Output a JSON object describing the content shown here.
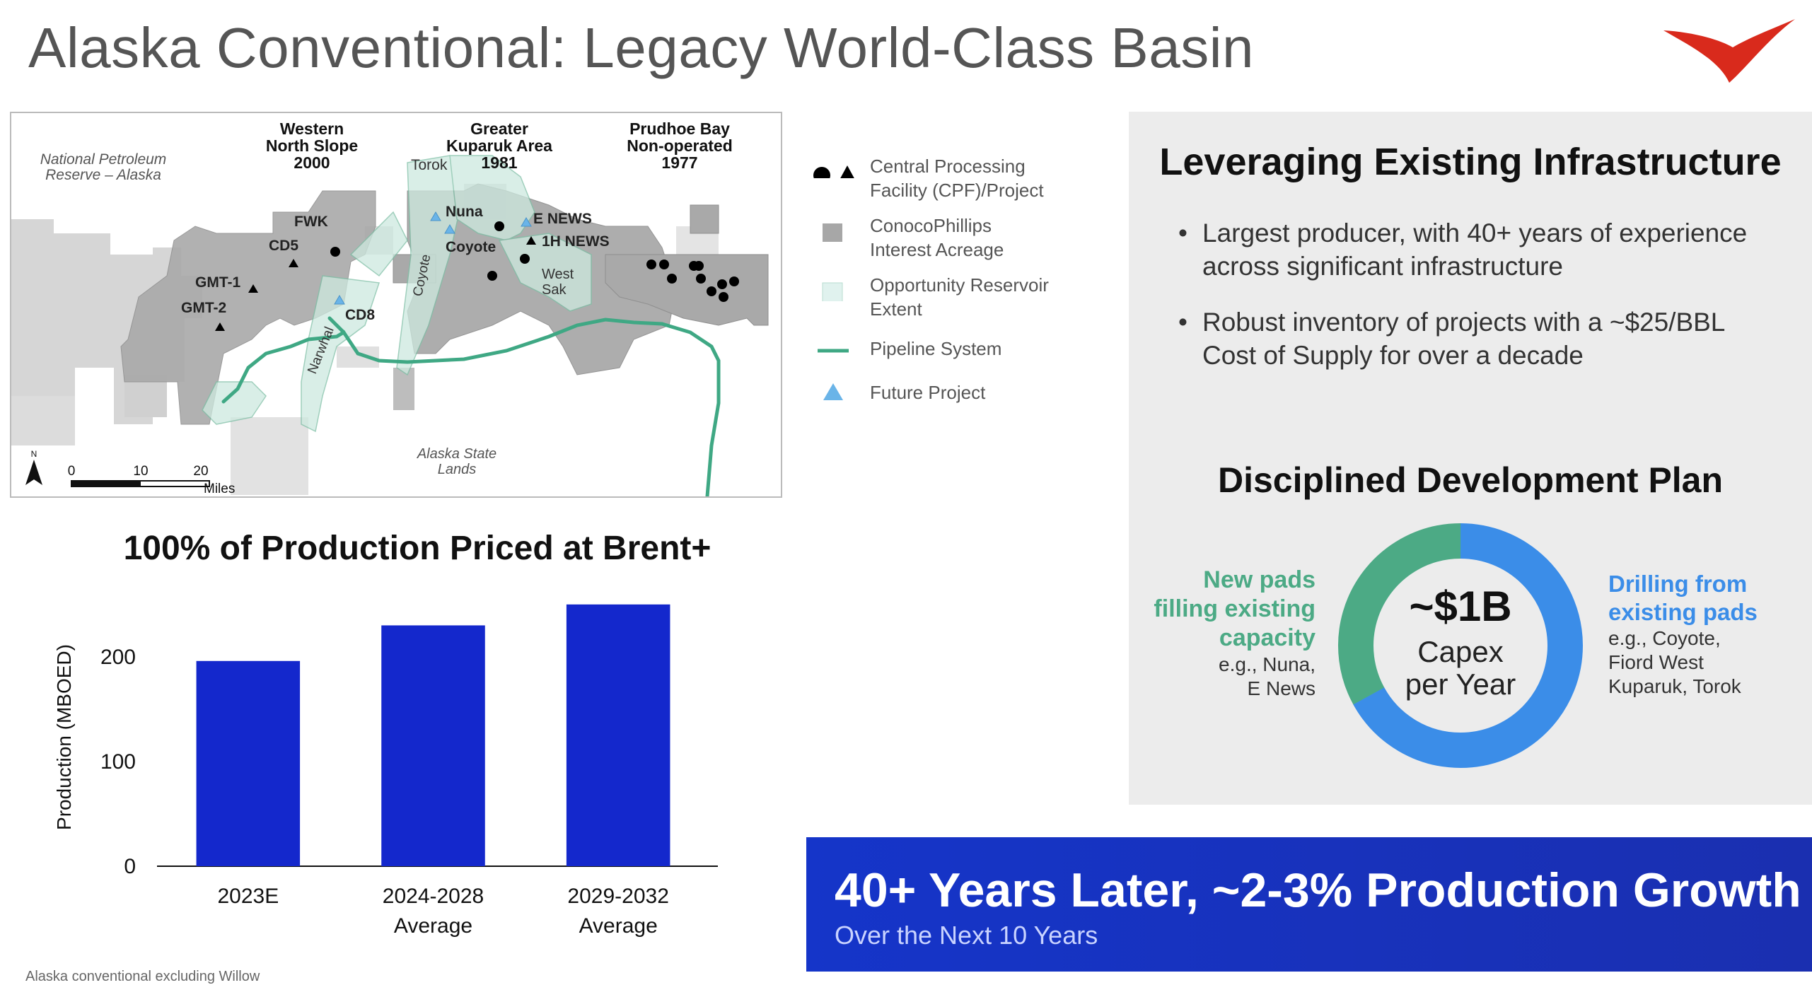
{
  "header": {
    "title": "Alaska Conventional: Legacy World-Class Basin"
  },
  "map": {
    "region_labels": {
      "npra": [
        "National Petroleum",
        "Reserve – Alaska"
      ],
      "western": [
        "Western",
        "North Slope",
        "2000"
      ],
      "greater": [
        "Greater",
        "Kuparuk Area",
        "1981"
      ],
      "prudhoe": [
        "Prudhoe Bay",
        "Non-operated",
        "1977"
      ],
      "state_lands": [
        "Alaska State",
        "Lands"
      ]
    },
    "site_labels": {
      "torok": "Torok",
      "nuna": "Nuna",
      "enews": "E NEWS",
      "onehnews": "1H NEWS",
      "coyote_area": "Coyote",
      "coyote_vertical": "Coyote",
      "fwk": "FWK",
      "cd5": "CD5",
      "gmt1": "GMT-1",
      "gmt2": "GMT-2",
      "cd8": "CD8",
      "narwhal": "Narwhal",
      "west_sak": [
        "West",
        "Sak"
      ]
    },
    "scale": {
      "ticks": [
        "0",
        "10",
        "20"
      ],
      "unit": "Miles",
      "north": "N"
    }
  },
  "legend": {
    "items": [
      {
        "label": "Central Processing Facility (CPF)/Project",
        "icon": "circle-triangle-icon"
      },
      {
        "label": "ConocoPhillips Interest Acreage",
        "icon": "gray-square-icon"
      },
      {
        "label": "Opportunity Reservoir Extent",
        "icon": "light-square-icon"
      },
      {
        "label": "Pipeline System",
        "icon": "pipeline-line-icon"
      },
      {
        "label": "Future Project",
        "icon": "blue-triangle-icon"
      }
    ]
  },
  "panel": {
    "heading": "Leveraging Existing Infrastructure",
    "bullets": [
      "Largest producer, with 40+ years of experience across significant infrastructure",
      "Robust inventory of projects with a ~$25/BBL Cost of Supply for over a decade"
    ],
    "plan_heading": "Disciplined Development Plan",
    "donut": {
      "center_value": "~$1B",
      "center_line1": "Capex",
      "center_line2": "per Year",
      "green_share": 0.33,
      "blue_share": 0.67,
      "green_color": "#4caa85",
      "blue_color": "#3b8de8",
      "left_title": [
        "New pads",
        "filling existing",
        "capacity"
      ],
      "left_examples": [
        "e.g., Nuna,",
        "E News"
      ],
      "right_title": [
        "Drilling from",
        "existing pads"
      ],
      "right_examples": [
        "e.g., Coyote,",
        "Fiord West",
        "Kuparuk, Torok"
      ]
    }
  },
  "banner": {
    "title": "40+ Years Later, ~2-3% Production Growth",
    "subtitle": "Over the Next 10 Years"
  },
  "chart_data": {
    "type": "bar",
    "title": "100% of Production Priced at Brent+",
    "categories": [
      [
        "2023E"
      ],
      [
        "2024-2028",
        "Average"
      ],
      [
        "2029-2032",
        "Average"
      ]
    ],
    "values": [
      196,
      230,
      250
    ],
    "ylabel": "Production (MBOED)",
    "xlabel": "",
    "yticks": [
      0,
      100,
      200
    ],
    "ylim": [
      0,
      260
    ],
    "bar_color": "#1428cc",
    "grid": false
  },
  "footnote": "Alaska conventional excluding Willow"
}
